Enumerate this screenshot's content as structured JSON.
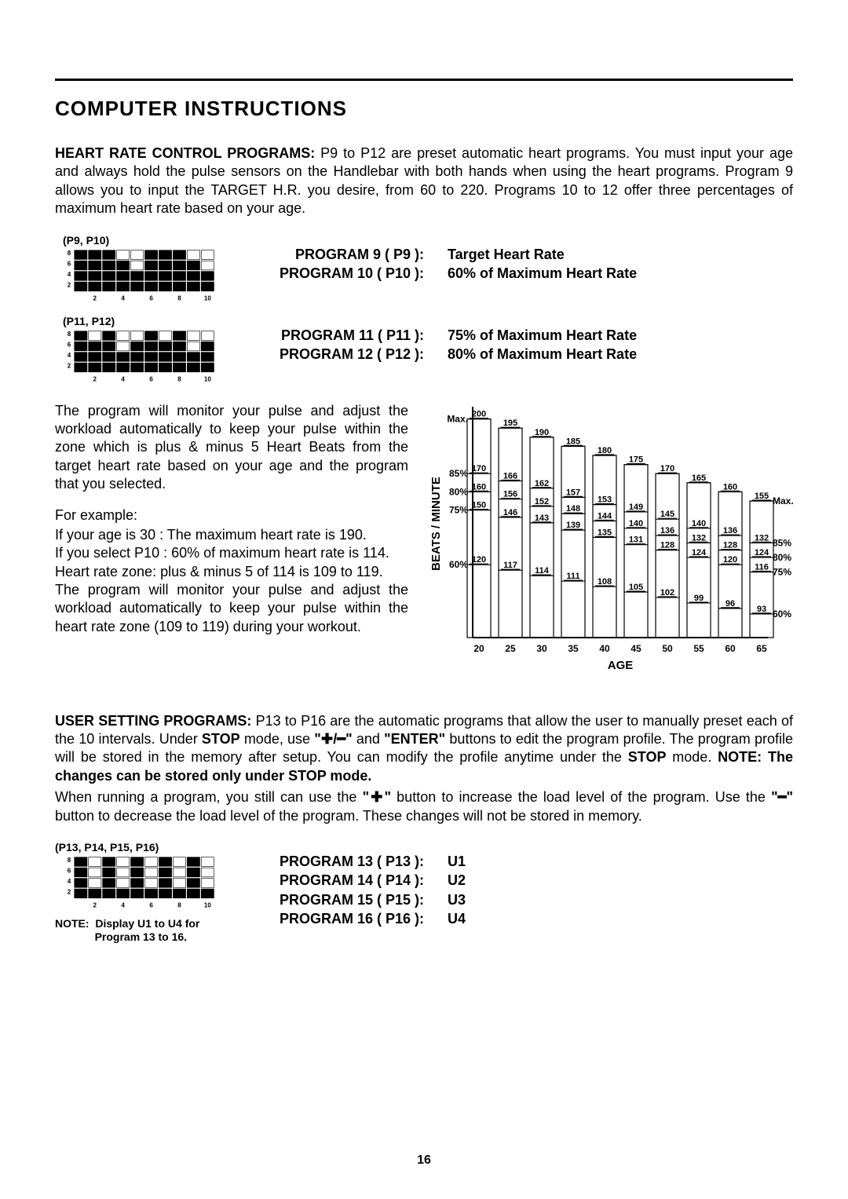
{
  "title": "COMPUTER INSTRUCTIONS",
  "hr_heading": "HEART RATE CONTROL PROGRAMS:",
  "hr_text": "  P9 to P12 are preset automatic heart programs.  You must input your age and always hold the pulse sensors on the Handlebar with both hands when using the heart programs. Program 9 allows you to input the TARGET H.R. you desire, from 60 to 220.  Programs 10 to 12 offer three percentages of maximum heart rate based on your age.",
  "profile1": {
    "label": "(P9, P10)",
    "bars": [
      4,
      4,
      4,
      3,
      2,
      4,
      4,
      4,
      3,
      2
    ],
    "y_ticks": [
      "2",
      "4",
      "6",
      "8"
    ],
    "x_ticks": [
      "2",
      "4",
      "6",
      "8",
      "10"
    ]
  },
  "profile2": {
    "label": "(P11, P12)",
    "bars": [
      4,
      3,
      4,
      2,
      3,
      4,
      3,
      4,
      2,
      3
    ],
    "y_ticks": [
      "2",
      "4",
      "6",
      "8"
    ],
    "x_ticks": [
      "2",
      "4",
      "6",
      "8",
      "10"
    ]
  },
  "profile3": {
    "label": "(P13, P14, P15, P16)",
    "bars": [
      4,
      1,
      4,
      1,
      4,
      1,
      4,
      1,
      4,
      1
    ],
    "y_ticks": [
      "2",
      "4",
      "6",
      "8"
    ],
    "x_ticks": [
      "2",
      "4",
      "6",
      "8",
      "10"
    ]
  },
  "prog9": {
    "k": "PROGRAM 9 ( P9 ):",
    "v": "Target Heart Rate"
  },
  "prog10": {
    "k": "PROGRAM 10 ( P10 ):",
    "v": "60%   of  Maximum Heart Rate"
  },
  "prog11": {
    "k": "PROGRAM 11 ( P11 ):",
    "v": "75%   of  Maximum Heart Rate"
  },
  "prog12": {
    "k": "PROGRAM 12 ( P12 ):",
    "v": "80%   of  Maximum Heart Rate"
  },
  "body_para1": "The program will monitor your pulse and adjust the workload automatically to keep your pulse within the zone which is plus & minus 5 Heart Beats from the target heart rate based on your age and the program that you selected.",
  "example_label": "For example:",
  "body_para2": "If your age is 30 :  The maximum heart rate is 190.\nIf you select P10 :  60% of maximum heart rate is 114.\nHeart rate zone:  plus & minus 5 of 114 is 109 to 119.\nThe program will monitor your pulse and adjust the workload automatically to keep your pulse within the heart rate zone (109 to 119) during your workout.",
  "hr_chart": {
    "y_axis_label": "BEATS / MINUTE",
    "x_axis_label": "AGE",
    "ages": [
      20,
      25,
      30,
      35,
      40,
      45,
      50,
      55,
      60,
      65
    ],
    "pct_left": [
      {
        "l": "Max.",
        "y": 200
      },
      {
        "l": "85%",
        "y": 170
      },
      {
        "l": "80%",
        "y": 160
      },
      {
        "l": "75%",
        "y": 150
      },
      {
        "l": "60%",
        "y": 120
      }
    ],
    "pct_right": [
      {
        "l": "Max.",
        "y": 155
      },
      {
        "l": "85%",
        "y": 132
      },
      {
        "l": "80%",
        "y": 124
      },
      {
        "l": "75%",
        "y": 116
      },
      {
        "l": "60%",
        "y": 93
      }
    ],
    "series": {
      "max": [
        200,
        195,
        190,
        185,
        180,
        175,
        170,
        165,
        160,
        155
      ],
      "p85": [
        170,
        166,
        162,
        157,
        153,
        149,
        145,
        140,
        136,
        132
      ],
      "p80": [
        160,
        156,
        152,
        148,
        144,
        140,
        136,
        132,
        128,
        124
      ],
      "p75": [
        150,
        146,
        143,
        139,
        135,
        131,
        128,
        124,
        120,
        116
      ],
      "p60": [
        120,
        117,
        114,
        111,
        108,
        105,
        102,
        99,
        96,
        93
      ]
    },
    "font_size_val": 11,
    "font_size_axis": 12,
    "font_size_label": 15,
    "color": "#000000",
    "bg": "#ffffff"
  },
  "user_heading": "USER SETTING PROGRAMS:",
  "user_text1": "  P13 to P16 are the automatic programs that allow the user to manually preset each of the 10 intervals.  Under ",
  "user_stop1": "STOP",
  "user_text2": " mode, use ",
  "user_plusminus": "\"✚/━\"",
  "user_text3": " and ",
  "user_enter": "\"ENTER\"",
  "user_text4": " buttons to edit the program profile.  The program profile will be stored in the memory after setup.  You can modify the profile anytime under the ",
  "user_stop2": "STOP",
  "user_text5": " mode.  ",
  "user_note1": "NOTE:  The changes can be stored only under STOP mode.",
  "user_text6": "When running a program, you still can use the ",
  "user_plus": "\"✚\"",
  "user_text7": " button to increase the load level of the program.  Use the ",
  "user_minus": "\"━\"",
  "user_text8": " button to decrease the load level of the program.  These changes will not be stored in memory.",
  "prog13": {
    "k": "PROGRAM 13 ( P13 ):",
    "v": "U1"
  },
  "prog14": {
    "k": "PROGRAM 14 ( P14 ):",
    "v": "U2"
  },
  "prog15": {
    "k": "PROGRAM 15 ( P15 ):",
    "v": "U3"
  },
  "prog16": {
    "k": "PROGRAM 16 ( P16 ):",
    "v": "U4"
  },
  "note_u": "NOTE:  Display U1 to U4 for\n             Program 13 to 16.",
  "page": "16"
}
